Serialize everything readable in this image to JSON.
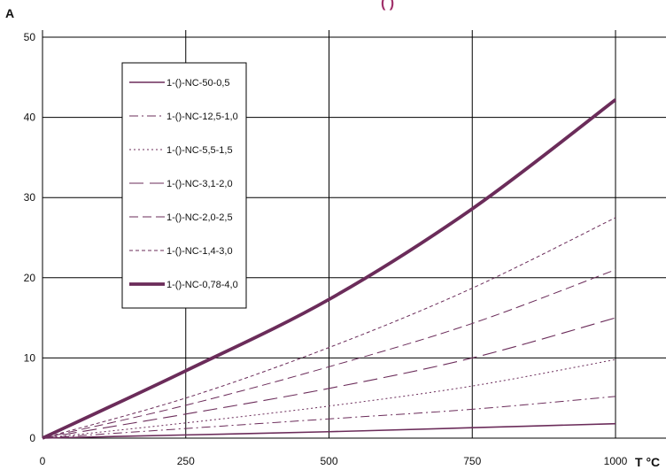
{
  "header_fragment": "(                    )",
  "chart_data": {
    "type": "line",
    "title": "",
    "xlabel": "T °C",
    "ylabel": "A",
    "xlim": [
      0,
      1000
    ],
    "ylim": [
      0,
      50
    ],
    "x_ticks": [
      "0",
      "250",
      "500",
      "750",
      "1000"
    ],
    "y_ticks": [
      "0",
      "10",
      "20",
      "30",
      "40",
      "50"
    ],
    "grid": true,
    "legend_position": "top-left",
    "line_color": "#6b2c5a",
    "series": [
      {
        "name": "1-()-NC-50-0,5",
        "style": "solid",
        "x": [
          0,
          250,
          500,
          750,
          1000
        ],
        "values": [
          0,
          0.4,
          0.8,
          1.3,
          1.8
        ]
      },
      {
        "name": "1-()-NC-12,5-1,0",
        "style": "dashdot",
        "x": [
          0,
          250,
          500,
          750,
          1000
        ],
        "values": [
          0,
          1.2,
          2.4,
          3.6,
          5.2
        ]
      },
      {
        "name": "1-()-NC-5,5-1,5",
        "style": "dotted",
        "x": [
          0,
          250,
          500,
          750,
          1000
        ],
        "values": [
          0,
          1.9,
          4.0,
          6.5,
          9.8
        ]
      },
      {
        "name": "1-()-NC-3,1-2,0",
        "style": "longdash",
        "x": [
          0,
          250,
          500,
          750,
          1000
        ],
        "values": [
          0,
          3.0,
          6.2,
          10.0,
          15.0
        ]
      },
      {
        "name": "1-()-NC-2,0-2,5",
        "style": "dash",
        "x": [
          0,
          250,
          500,
          750,
          1000
        ],
        "values": [
          0,
          4.1,
          8.9,
          14.3,
          21.0
        ]
      },
      {
        "name": "1-()-NC-1,4-3,0",
        "style": "shortdash",
        "x": [
          0,
          250,
          500,
          750,
          1000
        ],
        "values": [
          0,
          5.0,
          11.3,
          18.7,
          27.5
        ]
      },
      {
        "name": "1-()-NC-0,78-4,0",
        "style": "thick",
        "x": [
          0,
          250,
          500,
          750,
          1000
        ],
        "values": [
          0,
          8.4,
          17.3,
          28.6,
          42.2
        ]
      }
    ]
  }
}
